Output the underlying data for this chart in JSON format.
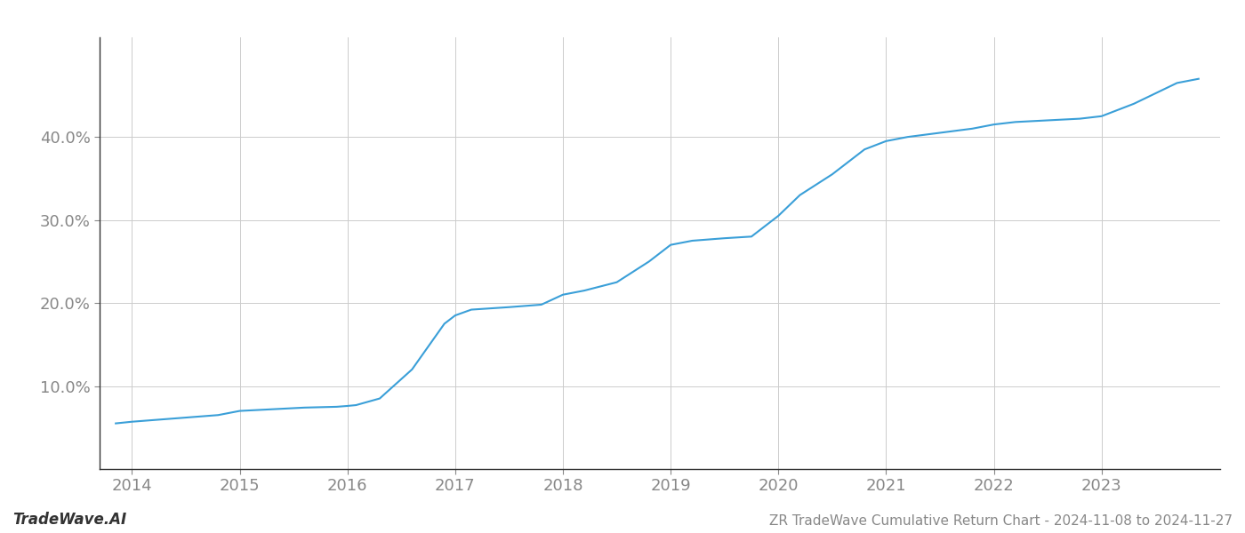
{
  "title": "ZR TradeWave Cumulative Return Chart - 2024-11-08 to 2024-11-27",
  "watermark": "TradeWave.AI",
  "line_color": "#3a9fd8",
  "line_width": 1.5,
  "background_color": "#ffffff",
  "grid_color": "#cccccc",
  "x_years": [
    2013.85,
    2014.0,
    2014.2,
    2014.5,
    2014.8,
    2015.0,
    2015.3,
    2015.6,
    2015.9,
    2016.0,
    2016.08,
    2016.3,
    2016.6,
    2016.9,
    2017.0,
    2017.15,
    2017.5,
    2017.8,
    2018.0,
    2018.2,
    2018.5,
    2018.8,
    2019.0,
    2019.2,
    2019.5,
    2019.75,
    2020.0,
    2020.2,
    2020.5,
    2020.8,
    2021.0,
    2021.2,
    2021.5,
    2021.8,
    2022.0,
    2022.2,
    2022.5,
    2022.8,
    2023.0,
    2023.3,
    2023.7,
    2023.9
  ],
  "y_values": [
    5.5,
    5.7,
    5.9,
    6.2,
    6.5,
    7.0,
    7.2,
    7.4,
    7.5,
    7.6,
    7.7,
    8.5,
    12.0,
    17.5,
    18.5,
    19.2,
    19.5,
    19.8,
    21.0,
    21.5,
    22.5,
    25.0,
    27.0,
    27.5,
    27.8,
    28.0,
    30.5,
    33.0,
    35.5,
    38.5,
    39.5,
    40.0,
    40.5,
    41.0,
    41.5,
    41.8,
    42.0,
    42.2,
    42.5,
    44.0,
    46.5,
    47.0
  ],
  "xlim": [
    2013.7,
    2024.1
  ],
  "ylim": [
    0,
    52
  ],
  "yticks": [
    10.0,
    20.0,
    30.0,
    40.0
  ],
  "xticks": [
    2014,
    2015,
    2016,
    2017,
    2018,
    2019,
    2020,
    2021,
    2022,
    2023
  ],
  "tick_color": "#888888",
  "tick_fontsize": 13,
  "title_fontsize": 11,
  "watermark_fontsize": 12,
  "spine_color": "#333333"
}
